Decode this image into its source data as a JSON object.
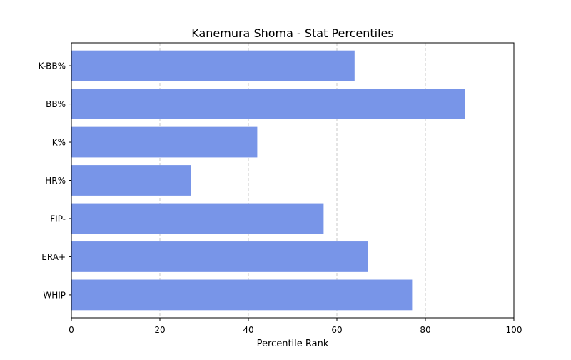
{
  "chart_data": {
    "type": "bar",
    "orientation": "horizontal",
    "title": "Kanemura Shoma - Stat Percentiles",
    "xlabel": "Percentile Rank",
    "ylabel": "",
    "xlim": [
      0,
      100
    ],
    "x_ticks": [
      0,
      20,
      40,
      60,
      80,
      100
    ],
    "grid": "x-axis dashed",
    "bar_color": "#7895e8",
    "categories": [
      "K-BB%",
      "BB%",
      "K%",
      "HR%",
      "FIP-",
      "ERA+",
      "WHIP"
    ],
    "values": [
      64,
      89,
      42,
      27,
      57,
      67,
      77
    ]
  }
}
